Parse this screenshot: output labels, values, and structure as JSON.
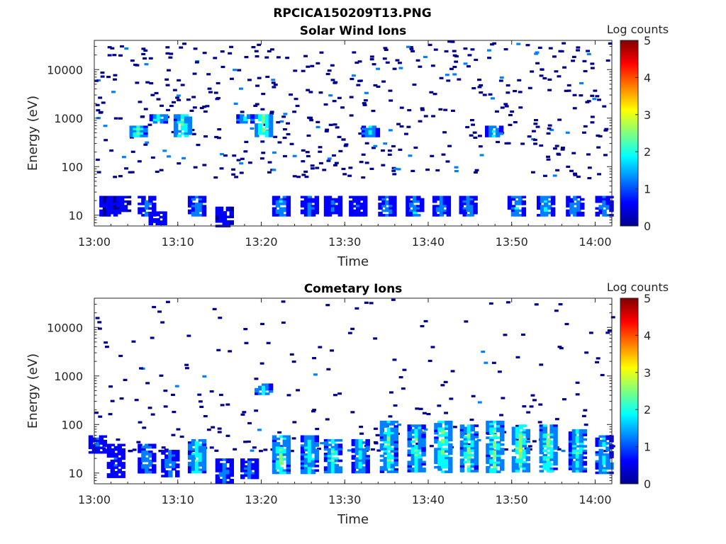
{
  "figure_title": "RPCICA150209T13.PNG",
  "colorbar_label": "Log counts",
  "colormap": [
    "#00008f",
    "#0000ff",
    "#0080ff",
    "#00ffff",
    "#80ff80",
    "#ffff00",
    "#ff8000",
    "#ff0000",
    "#800000"
  ],
  "chart_data": [
    {
      "type": "heatmap",
      "title": "Solar Wind Ions",
      "xlabel": "Time",
      "ylabel": "Energy (eV)",
      "x_ticks": [
        "13:00",
        "13:10",
        "13:20",
        "13:30",
        "13:40",
        "13:50",
        "14:00"
      ],
      "x_range_minutes": [
        0,
        62
      ],
      "y_scale": "log",
      "y_ticks": [
        10,
        100,
        1000,
        10000
      ],
      "y_tick_labels": [
        "10",
        "100",
        "1000",
        "10000"
      ],
      "y_range": [
        6,
        40000
      ],
      "colorbar": {
        "label": "Log counts",
        "range": [
          0,
          5
        ],
        "ticks": [
          "0",
          "1",
          "2",
          "3",
          "4",
          "5"
        ]
      },
      "features": [
        {
          "time_min": 1.6,
          "energy_range": [
            10,
            25
          ],
          "log_counts": 1.0
        },
        {
          "time_min": 2.0,
          "energy_range": [
            10,
            25
          ],
          "log_counts": 0.6
        },
        {
          "time_min": 3.2,
          "energy_range": [
            12,
            25
          ],
          "log_counts": 0.6
        },
        {
          "time_min": 5.2,
          "energy_range": [
            400,
            700
          ],
          "log_counts": 2.2
        },
        {
          "time_min": 6.2,
          "energy_range": [
            10,
            25
          ],
          "log_counts": 1.2
        },
        {
          "time_min": 7.5,
          "energy_range": [
            6,
            12
          ],
          "log_counts": 0.8
        },
        {
          "time_min": 7.6,
          "energy_range": [
            800,
            1200
          ],
          "log_counts": 2.0
        },
        {
          "time_min": 10.5,
          "energy_range": [
            400,
            1200
          ],
          "log_counts": 2.4
        },
        {
          "time_min": 12.2,
          "energy_range": [
            10,
            25
          ],
          "log_counts": 1.4
        },
        {
          "time_min": 15.5,
          "energy_range": [
            6,
            15
          ],
          "log_counts": 0.7
        },
        {
          "time_min": 18.0,
          "energy_range": [
            800,
            1200
          ],
          "log_counts": 1.8
        },
        {
          "time_min": 20.2,
          "energy_range": [
            400,
            1200
          ],
          "log_counts": 2.8
        },
        {
          "time_min": 22.3,
          "energy_range": [
            10,
            25
          ],
          "log_counts": 1.5
        },
        {
          "time_min": 25.7,
          "energy_range": [
            10,
            25
          ],
          "log_counts": 1.2
        },
        {
          "time_min": 28.5,
          "energy_range": [
            10,
            25
          ],
          "log_counts": 1.1
        },
        {
          "time_min": 31.5,
          "energy_range": [
            10,
            25
          ],
          "log_counts": 1.0
        },
        {
          "time_min": 33.0,
          "energy_range": [
            400,
            700
          ],
          "log_counts": 1.8
        },
        {
          "time_min": 35.0,
          "energy_range": [
            10,
            25
          ],
          "log_counts": 1.3
        },
        {
          "time_min": 38.3,
          "energy_range": [
            10,
            25
          ],
          "log_counts": 1.5
        },
        {
          "time_min": 41.5,
          "energy_range": [
            10,
            25
          ],
          "log_counts": 1.3
        },
        {
          "time_min": 44.7,
          "energy_range": [
            10,
            25
          ],
          "log_counts": 1.3
        },
        {
          "time_min": 47.8,
          "energy_range": [
            400,
            700
          ],
          "log_counts": 1.8
        },
        {
          "time_min": 50.5,
          "energy_range": [
            10,
            25
          ],
          "log_counts": 1.5
        },
        {
          "time_min": 54.0,
          "energy_range": [
            10,
            25
          ],
          "log_counts": 1.7
        },
        {
          "time_min": 57.5,
          "energy_range": [
            10,
            25
          ],
          "log_counts": 1.5
        },
        {
          "time_min": 61.0,
          "energy_range": [
            10,
            25
          ],
          "log_counts": 1.3
        }
      ]
    },
    {
      "type": "heatmap",
      "title": "Cometary Ions",
      "xlabel": "Time",
      "ylabel": "Energy (eV)",
      "x_ticks": [
        "13:00",
        "13:10",
        "13:20",
        "13:30",
        "13:40",
        "13:50",
        "14:00"
      ],
      "x_range_minutes": [
        0,
        62
      ],
      "y_scale": "log",
      "y_ticks": [
        10,
        100,
        1000,
        10000
      ],
      "y_tick_labels": [
        "10",
        "100",
        "1000",
        "10000"
      ],
      "y_range": [
        6,
        40000
      ],
      "colorbar": {
        "label": "Log counts",
        "range": [
          0,
          5
        ],
        "ticks": [
          "0",
          "1",
          "2",
          "3",
          "4",
          "5"
        ]
      },
      "features": [
        {
          "time_min": 0.3,
          "energy_range": [
            25,
            60
          ],
          "log_counts": 1.0
        },
        {
          "time_min": 2.5,
          "energy_range": [
            8,
            40
          ],
          "log_counts": 1.0
        },
        {
          "time_min": 6.2,
          "energy_range": [
            10,
            40
          ],
          "log_counts": 1.5
        },
        {
          "time_min": 9.0,
          "energy_range": [
            8,
            30
          ],
          "log_counts": 1.3
        },
        {
          "time_min": 12.2,
          "energy_range": [
            10,
            50
          ],
          "log_counts": 2.2
        },
        {
          "time_min": 15.5,
          "energy_range": [
            6,
            20
          ],
          "log_counts": 1.2
        },
        {
          "time_min": 18.5,
          "energy_range": [
            8,
            20
          ],
          "log_counts": 1.2
        },
        {
          "time_min": 20.2,
          "energy_range": [
            400,
            700
          ],
          "log_counts": 1.8
        },
        {
          "time_min": 22.3,
          "energy_range": [
            10,
            60
          ],
          "log_counts": 2.4
        },
        {
          "time_min": 25.7,
          "energy_range": [
            10,
            60
          ],
          "log_counts": 2.0
        },
        {
          "time_min": 28.5,
          "energy_range": [
            10,
            50
          ],
          "log_counts": 2.1
        },
        {
          "time_min": 31.8,
          "energy_range": [
            10,
            50
          ],
          "log_counts": 1.8
        },
        {
          "time_min": 35.2,
          "energy_range": [
            10,
            120
          ],
          "log_counts": 2.2
        },
        {
          "time_min": 38.5,
          "energy_range": [
            10,
            100
          ],
          "log_counts": 2.2
        },
        {
          "time_min": 41.7,
          "energy_range": [
            10,
            120
          ],
          "log_counts": 2.5
        },
        {
          "time_min": 44.8,
          "energy_range": [
            10,
            100
          ],
          "log_counts": 2.3
        },
        {
          "time_min": 47.9,
          "energy_range": [
            10,
            120
          ],
          "log_counts": 2.4
        },
        {
          "time_min": 51.0,
          "energy_range": [
            10,
            100
          ],
          "log_counts": 2.6
        },
        {
          "time_min": 54.3,
          "energy_range": [
            10,
            100
          ],
          "log_counts": 2.5
        },
        {
          "time_min": 57.8,
          "energy_range": [
            10,
            80
          ],
          "log_counts": 2.0
        },
        {
          "time_min": 61.0,
          "energy_range": [
            10,
            60
          ],
          "log_counts": 1.8
        }
      ]
    }
  ]
}
